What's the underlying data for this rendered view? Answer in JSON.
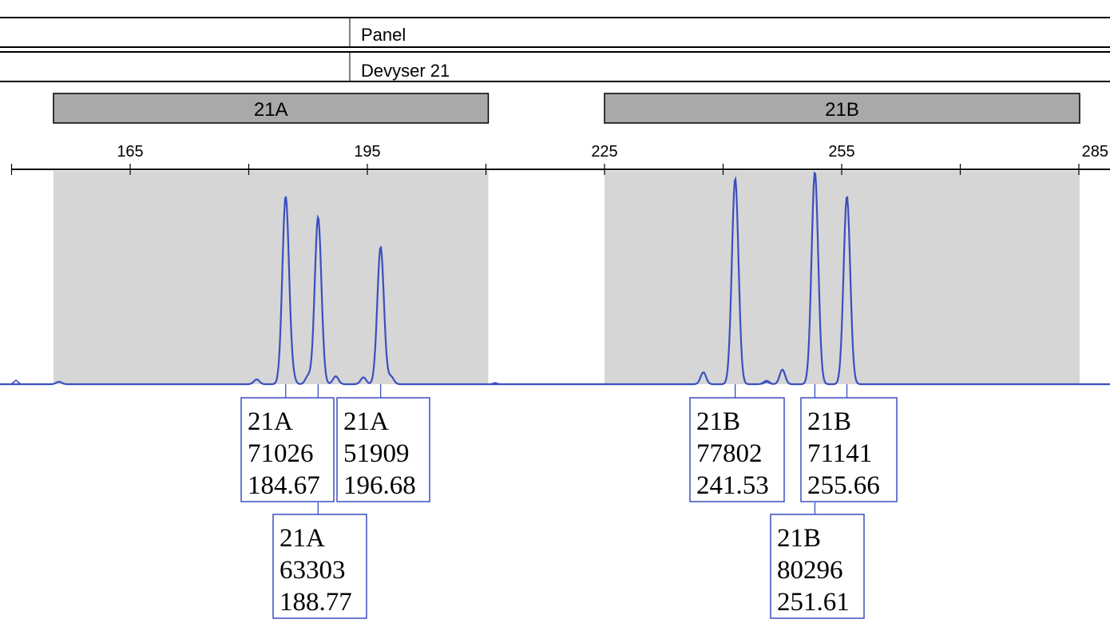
{
  "header": {
    "panel_label": "Panel",
    "panel_value": "Devyser 21"
  },
  "chart_data": {
    "type": "line",
    "title": "",
    "xlabel": "",
    "ylabel": "",
    "xlim": [
      155,
      285
    ],
    "x_ticks": [
      165,
      195,
      225,
      255,
      285
    ],
    "grid": false,
    "colors": {
      "trace": "#3a4fc0",
      "bin_fill": "#d6d6d6",
      "marker_fill": "#a9a9a9",
      "label_border": "#3a4fc0"
    },
    "markers": [
      {
        "name": "21A",
        "x_start": 155.3,
        "x_end": 210.3
      },
      {
        "name": "21B",
        "x_start": 225.0,
        "x_end": 290.0
      }
    ],
    "peaks": [
      {
        "marker": "21A",
        "height": 71026,
        "size": 184.67
      },
      {
        "marker": "21A",
        "height": 63303,
        "size": 188.77
      },
      {
        "marker": "21A",
        "height": 51909,
        "size": 196.68
      },
      {
        "marker": "21B",
        "height": 77802,
        "size": 241.53
      },
      {
        "marker": "21B",
        "height": 80296,
        "size": 251.61
      },
      {
        "marker": "21B",
        "height": 71141,
        "size": 255.66
      }
    ],
    "minor_peaks": [
      {
        "size": 156.0,
        "height": 900
      },
      {
        "size": 185.5,
        "height": 2500
      },
      {
        "size": 181.0,
        "height": 1800
      },
      {
        "size": 187.5,
        "height": 3000
      },
      {
        "size": 191.0,
        "height": 3000
      },
      {
        "size": 194.5,
        "height": 2600
      },
      {
        "size": 198.0,
        "height": 2800
      },
      {
        "size": 237.5,
        "height": 4500
      },
      {
        "size": 247.5,
        "height": 5500
      },
      {
        "size": 245.5,
        "height": 1300
      }
    ]
  }
}
